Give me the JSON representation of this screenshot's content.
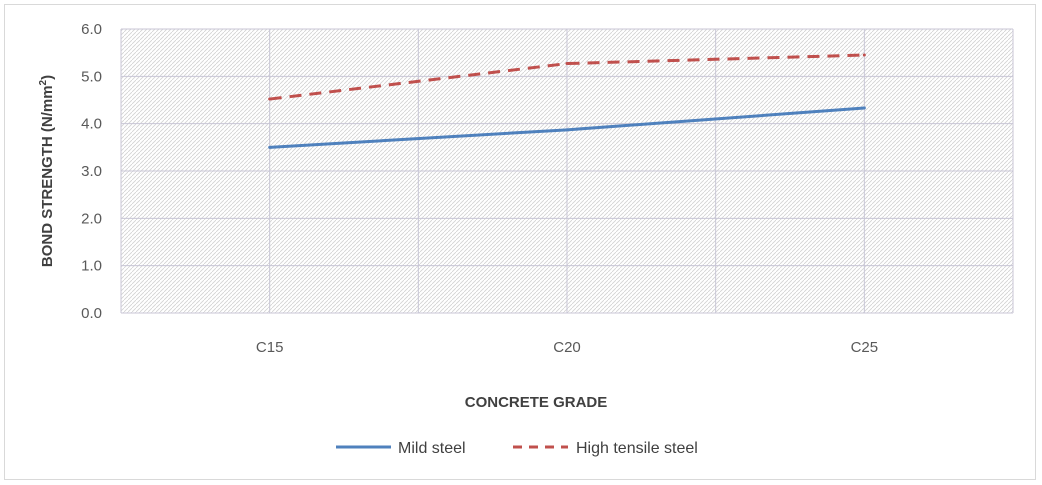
{
  "chart_data": {
    "type": "line",
    "title": "",
    "xlabel": "CONCRETE GRADE",
    "ylabel_main": "BOND STRENGTH  (N/mm",
    "ylabel_sup": "2",
    "ylabel_close": ")",
    "categories": [
      "C15",
      "C20",
      "C25"
    ],
    "ylim": [
      0,
      6
    ],
    "yticks": [
      0,
      1,
      2,
      3,
      4,
      5,
      6
    ],
    "ytick_labels": [
      "0.0",
      "1.0",
      "2.0",
      "3.0",
      "4.0",
      "5.0",
      "6.0"
    ],
    "grid": true,
    "legend_position": "bottom",
    "series": [
      {
        "name": "Mild steel",
        "values": [
          3.5,
          3.87,
          4.33
        ],
        "color": "#4f81bd",
        "style": "solid"
      },
      {
        "name": "High tensile steel",
        "values": [
          4.52,
          5.27,
          5.45
        ],
        "color": "#c0504d",
        "style": "dashed"
      }
    ]
  }
}
